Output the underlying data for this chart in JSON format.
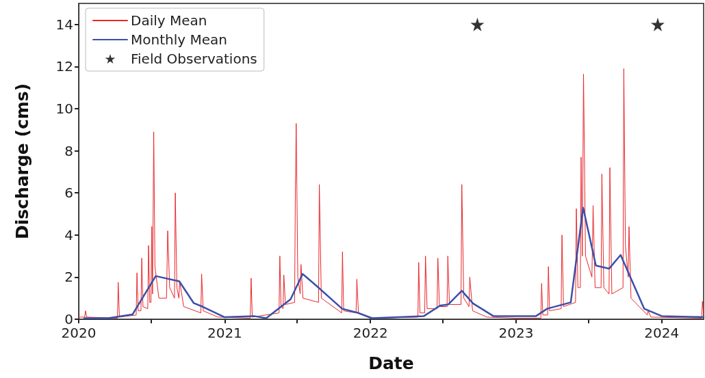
{
  "chart_data": {
    "type": "line",
    "xlabel": "Date",
    "ylabel": "Discharge (cms)",
    "xlim": [
      "2020-01-01",
      "2024-04-15"
    ],
    "xticks": [
      {
        "value": "2020-01-01",
        "label": "2020"
      },
      {
        "value": "2020-07-01",
        "label": null
      },
      {
        "value": "2021-01-01",
        "label": "2021"
      },
      {
        "value": "2021-07-01",
        "label": null
      },
      {
        "value": "2022-01-01",
        "label": "2022"
      },
      {
        "value": "2022-07-01",
        "label": null
      },
      {
        "value": "2023-01-01",
        "label": "2023"
      },
      {
        "value": "2023-07-01",
        "label": null
      },
      {
        "value": "2024-01-01",
        "label": "2024"
      }
    ],
    "ylim": [
      0,
      15
    ],
    "yticks": [
      0,
      2,
      4,
      6,
      8,
      10,
      12,
      14
    ],
    "grid": false,
    "legend": "top left",
    "series": [
      {
        "name": "Daily Mean",
        "color": "#e8262a",
        "marker": "none",
        "x": [
          "2020-01-01",
          "2020-01-16",
          "2020-01-18",
          "2020-01-21",
          "2020-04-07",
          "2020-04-09",
          "2020-04-12",
          "2020-05-24",
          "2020-05-26",
          "2020-05-29",
          "2020-06-05",
          "2020-06-07",
          "2020-06-10",
          "2020-06-22",
          "2020-06-24",
          "2020-06-27",
          "2020-06-30",
          "2020-07-02",
          "2020-07-04",
          "2020-07-07",
          "2020-07-10",
          "2020-07-20",
          "2020-08-08",
          "2020-08-11",
          "2020-08-16",
          "2020-08-28",
          "2020-08-30",
          "2020-09-03",
          "2020-09-08",
          "2020-09-10",
          "2020-09-20",
          "2020-11-02",
          "2020-11-04",
          "2020-11-08",
          "2020-12-15",
          "2021-03-06",
          "2021-03-08",
          "2021-03-11",
          "2021-05-17",
          "2021-05-19",
          "2021-05-22",
          "2021-05-27",
          "2021-05-29",
          "2021-06-02",
          "2021-06-25",
          "2021-06-27",
          "2021-06-29",
          "2021-07-03",
          "2021-07-09",
          "2021-07-11",
          "2021-07-16",
          "2021-08-24",
          "2021-08-26",
          "2021-08-31",
          "2021-10-21",
          "2021-10-23",
          "2021-10-26",
          "2021-11-26",
          "2021-11-28",
          "2021-12-02",
          "2021-12-31",
          "2022-04-30",
          "2022-05-02",
          "2022-05-05",
          "2022-05-17",
          "2022-05-19",
          "2022-05-23",
          "2022-06-17",
          "2022-06-19",
          "2022-06-23",
          "2022-07-12",
          "2022-07-14",
          "2022-07-18",
          "2022-08-16",
          "2022-08-18",
          "2022-08-23",
          "2022-09-05",
          "2022-09-07",
          "2022-09-14",
          "2022-10-20",
          "2022-12-31",
          "2023-03-04",
          "2023-03-06",
          "2023-03-09",
          "2023-03-21",
          "2023-03-23",
          "2023-03-26",
          "2023-04-24",
          "2023-04-26",
          "2023-04-30",
          "2023-05-30",
          "2023-06-01",
          "2023-06-05",
          "2023-06-11",
          "2023-06-13",
          "2023-06-16",
          "2023-06-19",
          "2023-06-24",
          "2023-07-10",
          "2023-07-13",
          "2023-07-18",
          "2023-08-02",
          "2023-08-04",
          "2023-08-09",
          "2023-08-22",
          "2023-08-24",
          "2023-08-29",
          "2023-09-26",
          "2023-09-28",
          "2023-10-02",
          "2023-10-09",
          "2023-10-11",
          "2023-10-16",
          "2023-11-26",
          "2023-11-28",
          "2023-12-05",
          "2024-04-10",
          "2024-04-12",
          "2024-04-15"
        ],
        "values": [
          0.1,
          0.1,
          0.4,
          0.1,
          0.05,
          1.75,
          0.1,
          0.2,
          2.2,
          0.4,
          0.4,
          2.9,
          0.6,
          0.5,
          3.5,
          0.8,
          0.8,
          4.4,
          1.2,
          8.9,
          2.5,
          1.0,
          1.0,
          4.2,
          1.5,
          1.0,
          6.0,
          1.5,
          1.0,
          1.8,
          0.6,
          0.3,
          2.15,
          0.4,
          0.1,
          0.05,
          1.95,
          0.1,
          0.3,
          3.0,
          0.6,
          0.5,
          2.1,
          0.7,
          0.8,
          6.3,
          9.3,
          2.0,
          1.2,
          2.6,
          1.0,
          0.8,
          6.4,
          1.0,
          0.3,
          3.2,
          0.4,
          0.3,
          1.9,
          0.3,
          0.05,
          0.1,
          2.7,
          0.3,
          0.3,
          3.0,
          0.5,
          0.5,
          2.9,
          0.6,
          0.6,
          3.0,
          0.7,
          0.7,
          6.4,
          1.0,
          0.6,
          2.0,
          0.4,
          0.1,
          0.05,
          0.05,
          1.7,
          0.2,
          0.2,
          2.5,
          0.4,
          0.5,
          4.0,
          0.6,
          0.8,
          5.25,
          1.5,
          1.5,
          7.7,
          3.0,
          11.65,
          3.0,
          2.0,
          5.4,
          1.5,
          1.5,
          6.9,
          1.5,
          1.2,
          7.2,
          1.2,
          1.5,
          11.9,
          3.5,
          2.0,
          4.4,
          1.0,
          0.2,
          0.4,
          0.1,
          0.05,
          0.85,
          0.2
        ]
      },
      {
        "name": "Monthly Mean",
        "color": "#3a4fa8",
        "marker": "none",
        "x": [
          "2020-01-15",
          "2020-03-15",
          "2020-05-15",
          "2020-07-12",
          "2020-09-09",
          "2020-10-15",
          "2020-11-06",
          "2020-12-31",
          "2021-03-15",
          "2021-04-15",
          "2021-06-15",
          "2021-07-15",
          "2021-08-18",
          "2021-10-22",
          "2021-12-01",
          "2022-01-05",
          "2022-05-15",
          "2022-06-25",
          "2022-07-15",
          "2022-08-18",
          "2022-09-15",
          "2022-11-05",
          "2023-02-20",
          "2023-03-20",
          "2023-05-18",
          "2023-06-18",
          "2023-07-20",
          "2023-08-22",
          "2023-09-20",
          "2023-11-18",
          "2024-01-01",
          "2024-04-15"
        ],
        "values": [
          0.05,
          0.05,
          0.23,
          2.05,
          1.8,
          0.77,
          0.6,
          0.1,
          0.15,
          0.05,
          0.95,
          2.15,
          1.6,
          0.5,
          0.3,
          0.05,
          0.15,
          0.65,
          0.7,
          1.35,
          0.75,
          0.15,
          0.15,
          0.5,
          0.8,
          5.3,
          2.55,
          2.4,
          3.05,
          0.5,
          0.15,
          0.1
        ]
      },
      {
        "name": "Field Observations",
        "type": "scatter",
        "color": "#000000",
        "marker": "star",
        "x": [
          "2022-09-26",
          "2023-12-22"
        ],
        "values": [
          14,
          14
        ]
      }
    ]
  }
}
